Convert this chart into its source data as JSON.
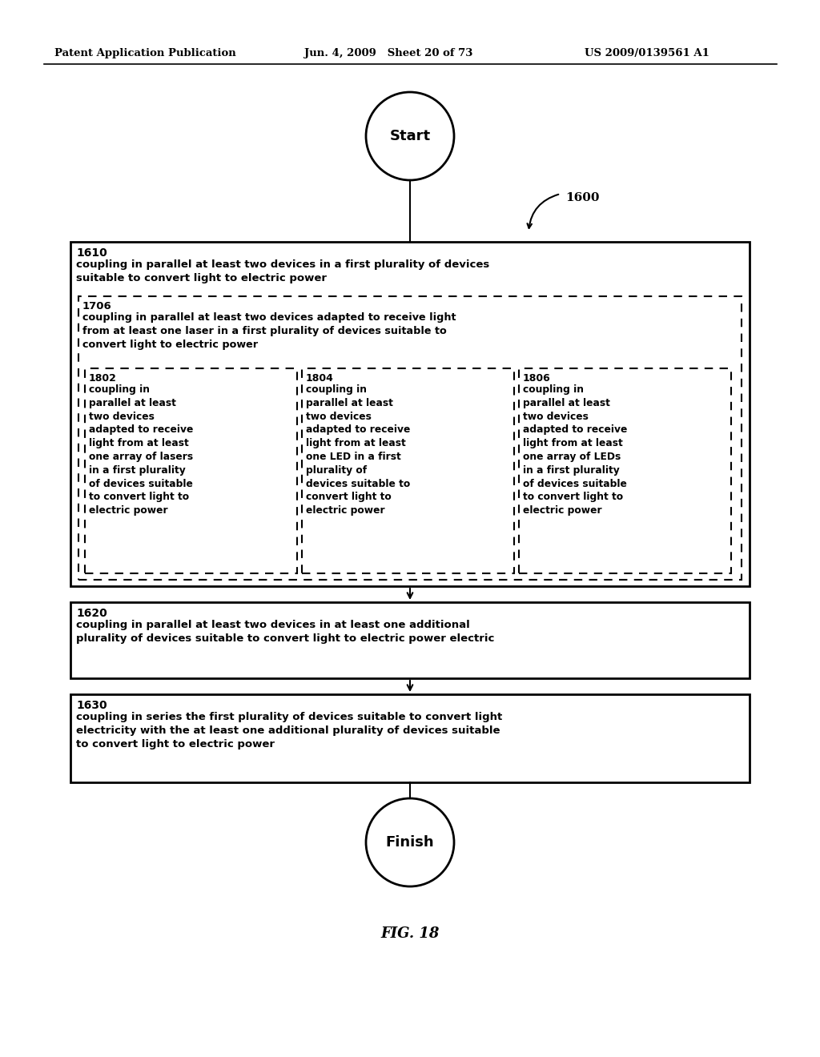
{
  "header_left": "Patent Application Publication",
  "header_mid": "Jun. 4, 2009   Sheet 20 of 73",
  "header_right": "US 2009/0139561 A1",
  "fig_label": "FIG. 18",
  "start_label": "Start",
  "finish_label": "Finish",
  "ref_1600": "1600",
  "box1610_label": "1610",
  "box1610_text": "coupling in parallel at least two devices in a first plurality of devices\nsuitable to convert light to electric power",
  "box1706_label": "1706",
  "box1706_text": "coupling in parallel at least two devices adapted to receive light\nfrom at least one laser in a first plurality of devices suitable to\nconvert light to electric power",
  "box1802_label": "1802",
  "box1802_text": "coupling in\nparallel at least\ntwo devices\nadapted to receive\nlight from at least\none array of lasers\nin a first plurality\nof devices suitable\nto convert light to\nelectric power",
  "box1804_label": "1804",
  "box1804_text": "coupling in\nparallel at least\ntwo devices\nadapted to receive\nlight from at least\none LED in a first\nplurality of\ndevices suitable to\nconvert light to\nelectric power",
  "box1806_label": "1806",
  "box1806_text": "coupling in\nparallel at least\ntwo devices\nadapted to receive\nlight from at least\none array of LEDs\nin a first plurality\nof devices suitable\nto convert light to\nelectric power",
  "box1620_label": "1620",
  "box1620_text": "coupling in parallel at least two devices in at least one additional\nplurality of devices suitable to convert light to electric power electric",
  "box1630_label": "1630",
  "box1630_text": "coupling in series the first plurality of devices suitable to convert light\nelectricity with the at least one additional plurality of devices suitable\nto convert light to electric power",
  "bg_color": "#ffffff",
  "text_color": "#000000",
  "line_color": "#000000"
}
